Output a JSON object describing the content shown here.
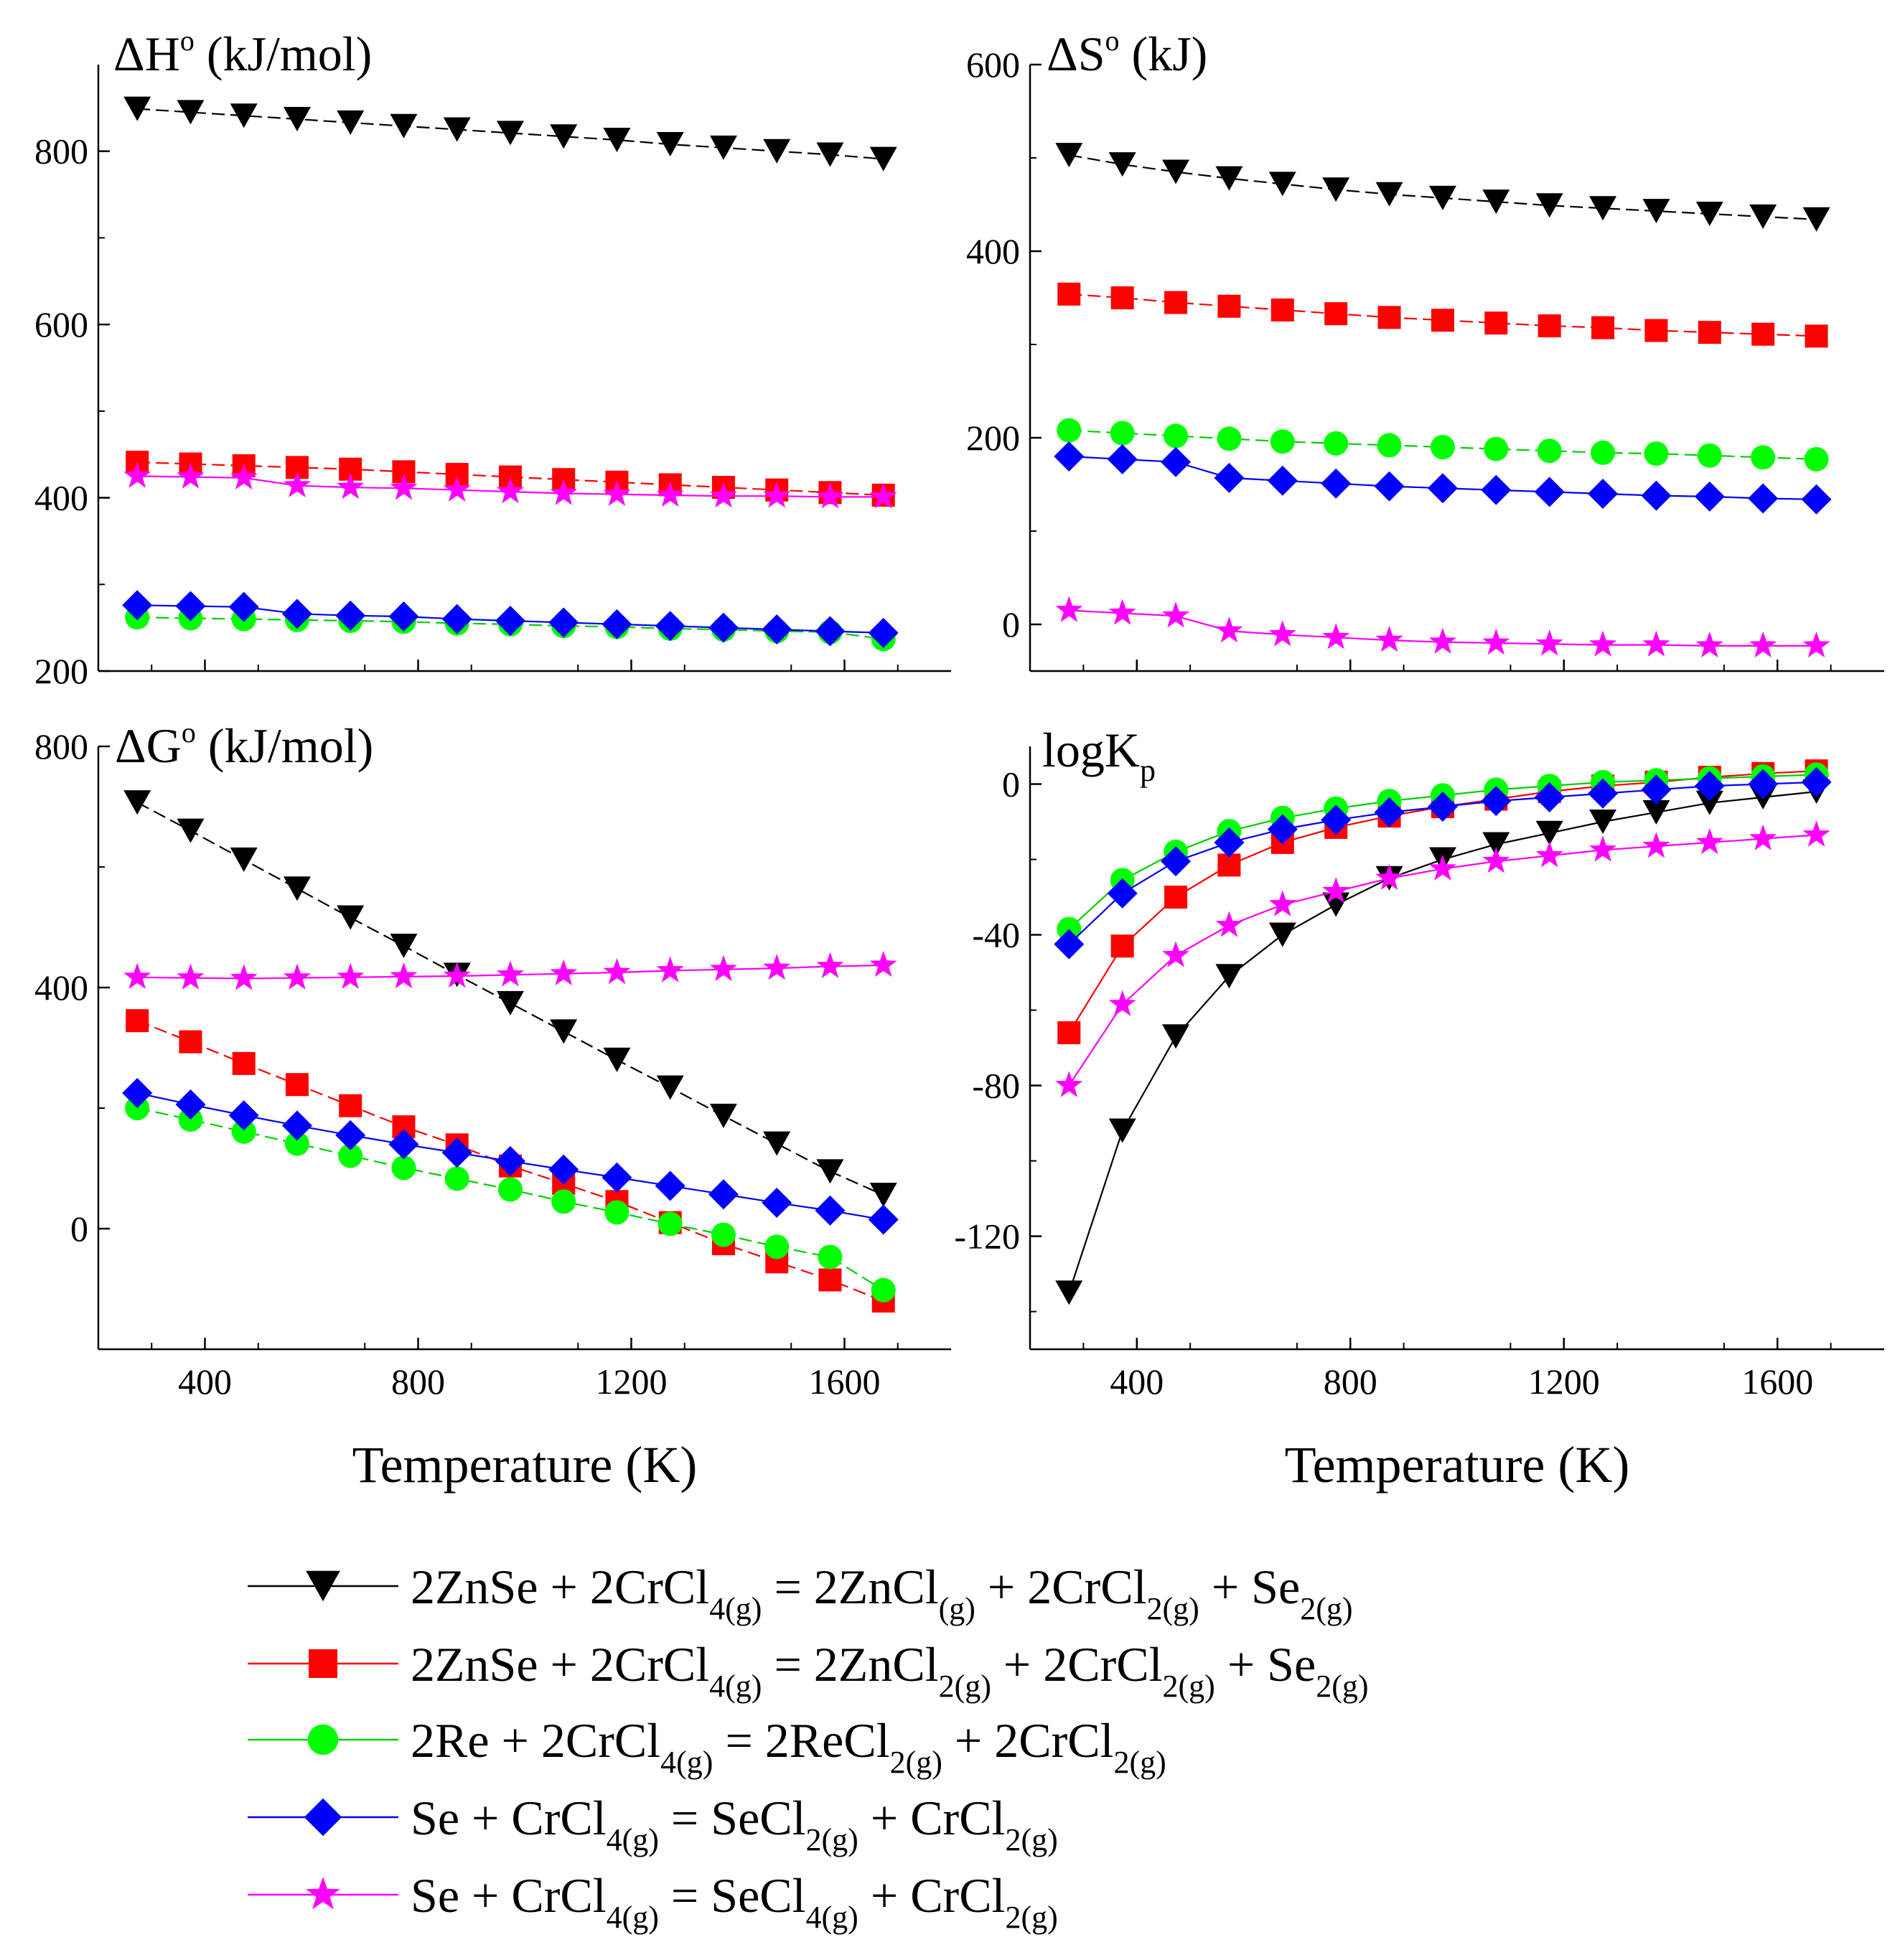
{
  "chart_data": [
    {
      "type": "line",
      "title": "ΔH",
      "title_sup": "o",
      "title_rest": " (kJ/mol)",
      "xlabel": "",
      "xlim": [
        200,
        1800
      ],
      "ylim": [
        200,
        900
      ],
      "yticks": [
        200,
        400,
        600,
        800
      ],
      "yticks_minor": [
        300,
        500,
        700
      ],
      "xticks": [
        400,
        800,
        1200,
        1600
      ],
      "show_x_ticklabels": false,
      "x": [
        273,
        373,
        473,
        573,
        673,
        773,
        873,
        973,
        1073,
        1173,
        1273,
        1373,
        1473,
        1573,
        1673
      ],
      "series": [
        {
          "values": [
            849,
            845,
            841,
            837,
            833,
            829,
            825,
            821,
            817,
            813,
            808,
            804,
            800,
            796,
            791
          ]
        },
        {
          "values": [
            441,
            439,
            437,
            435,
            433,
            430,
            427,
            424,
            421,
            418,
            415,
            412,
            409,
            406,
            403
          ]
        },
        {
          "values": [
            262,
            261,
            260,
            259,
            258,
            257,
            255,
            254,
            252,
            251,
            249,
            248,
            246,
            245,
            237
          ]
        },
        {
          "values": [
            276,
            275,
            274,
            266,
            264,
            263,
            260,
            258,
            256,
            254,
            252,
            250,
            248,
            246,
            244
          ]
        },
        {
          "values": [
            425,
            424,
            423,
            414,
            412,
            411,
            409,
            407,
            405,
            404,
            403,
            402,
            402,
            401,
            401
          ]
        }
      ]
    },
    {
      "type": "line",
      "title": "ΔS",
      "title_sup": "o",
      "title_rest": " (kJ)",
      "xlabel": "",
      "xlim": [
        200,
        1800
      ],
      "ylim": [
        -50,
        600
      ],
      "yticks": [
        0,
        200,
        400,
        600
      ],
      "yticks_minor": [
        100,
        300,
        500
      ],
      "xticks": [
        400,
        800,
        1200,
        1600
      ],
      "show_x_ticklabels": false,
      "x": [
        273,
        373,
        473,
        573,
        673,
        773,
        873,
        973,
        1073,
        1173,
        1273,
        1373,
        1473,
        1573,
        1673
      ],
      "series": [
        {
          "values": [
            503,
            493,
            485,
            478,
            472,
            466,
            461,
            457,
            453,
            449,
            446,
            443,
            440,
            437,
            434
          ]
        },
        {
          "values": [
            354,
            350,
            345,
            341,
            337,
            333,
            329,
            326,
            323,
            320,
            318,
            315,
            313,
            311,
            309
          ]
        },
        {
          "values": [
            208,
            205,
            202,
            199,
            196,
            194,
            192,
            190,
            188,
            186,
            184,
            183,
            181,
            179,
            177
          ]
        },
        {
          "values": [
            180,
            177,
            174,
            157,
            154,
            151,
            148,
            146,
            144,
            142,
            140,
            138,
            137,
            135,
            134
          ]
        },
        {
          "values": [
            15,
            12,
            9,
            -7,
            -11,
            -14,
            -17,
            -19,
            -20,
            -21,
            -22,
            -22,
            -23,
            -23,
            -23
          ]
        }
      ]
    },
    {
      "type": "line",
      "title": "ΔG",
      "title_sup": "o",
      "title_rest": " (kJ/mol)",
      "xlabel": "Temperature (K)",
      "xlim": [
        200,
        1800
      ],
      "ylim": [
        -200,
        800
      ],
      "yticks": [
        0,
        400,
        800
      ],
      "yticks_minor": [
        -200,
        200,
        600
      ],
      "xticks": [
        400,
        800,
        1200,
        1600
      ],
      "show_x_ticklabels": true,
      "x": [
        273,
        373,
        473,
        573,
        673,
        773,
        873,
        973,
        1073,
        1173,
        1273,
        1373,
        1473,
        1573,
        1673
      ],
      "series": [
        {
          "values": [
            707,
            660,
            612,
            564,
            516,
            469,
            421,
            374,
            327,
            280,
            234,
            187,
            141,
            95,
            56
          ]
        },
        {
          "values": [
            345,
            310,
            274,
            239,
            204,
            169,
            139,
            104,
            75,
            45,
            10,
            -25,
            -55,
            -85,
            -120
          ]
        },
        {
          "values": [
            200,
            181,
            161,
            141,
            121,
            101,
            83,
            65,
            45,
            27,
            8,
            -10,
            -30,
            -47,
            -102
          ]
        },
        {
          "values": [
            225,
            206,
            188,
            171,
            155,
            140,
            126,
            112,
            98,
            85,
            71,
            57,
            43,
            30,
            15
          ]
        },
        {
          "values": [
            417,
            416,
            415,
            416,
            417,
            418,
            419,
            421,
            423,
            425,
            428,
            430,
            432,
            435,
            437
          ]
        }
      ]
    },
    {
      "type": "line",
      "title": "logK",
      "title_sub": "p",
      "xlabel": "Temperature (K)",
      "xlim": [
        200,
        1800
      ],
      "ylim": [
        -150,
        10
      ],
      "yticks": [
        -120,
        -80,
        -40,
        0
      ],
      "yticks_minor": [
        -140,
        -100,
        -60,
        -20
      ],
      "xticks": [
        400,
        800,
        1200,
        1600
      ],
      "show_x_ticklabels": true,
      "x": [
        273,
        373,
        473,
        573,
        673,
        773,
        873,
        973,
        1073,
        1173,
        1273,
        1373,
        1473,
        1573,
        1673
      ],
      "series": [
        {
          "values": [
            -135,
            -92,
            -67,
            -51,
            -40,
            -32,
            -25,
            -20,
            -16,
            -13,
            -10,
            -7.5,
            -5,
            -3.5,
            -2
          ]
        },
        {
          "values": [
            -66,
            -43,
            -30,
            -21.5,
            -15.5,
            -11.5,
            -8.5,
            -6,
            -4,
            -2,
            -0.5,
            0.5,
            1.8,
            2.8,
            3.5
          ]
        },
        {
          "values": [
            -38.5,
            -25.5,
            -18,
            -12.5,
            -9,
            -6.5,
            -4.5,
            -3,
            -1.5,
            -0.5,
            0.5,
            1,
            1.5,
            2,
            2.5
          ]
        },
        {
          "values": [
            -42.5,
            -29,
            -20.5,
            -15.5,
            -12,
            -9.5,
            -7.5,
            -6,
            -4.5,
            -3.5,
            -2.5,
            -1.5,
            -0.5,
            0,
            0.5
          ]
        },
        {
          "values": [
            -80,
            -58.5,
            -45.5,
            -37.5,
            -32,
            -28.5,
            -25,
            -22.5,
            -20.5,
            -19,
            -17.5,
            -16.5,
            -15.5,
            -14.5,
            -13.5
          ]
        }
      ]
    }
  ],
  "legend": [
    {
      "marker": "triangle-down",
      "color": "#000000",
      "parts": [
        [
          "2ZnSe + 2CrCl",
          ""
        ],
        [
          "4(g)",
          "sub"
        ],
        [
          " = 2ZnCl",
          ""
        ],
        [
          "(g)",
          "sub"
        ],
        [
          " + 2CrCl",
          ""
        ],
        [
          "2(g)",
          "sub"
        ],
        [
          " + Se",
          ""
        ],
        [
          "2(g)",
          "sub"
        ]
      ]
    },
    {
      "marker": "square",
      "color": "#ff0000",
      "parts": [
        [
          "2ZnSe + 2CrCl",
          ""
        ],
        [
          "4(g)",
          "sub"
        ],
        [
          " = 2ZnCl",
          ""
        ],
        [
          "2(g)",
          "sub"
        ],
        [
          " + 2CrCl",
          ""
        ],
        [
          "2(g)",
          "sub"
        ],
        [
          " + Se",
          ""
        ],
        [
          "2(g)",
          "sub"
        ]
      ]
    },
    {
      "marker": "circle",
      "color": "#00ff00",
      "parts": [
        [
          "2Re + 2CrCl",
          ""
        ],
        [
          "4(g)",
          "sub"
        ],
        [
          " = 2ReCl",
          ""
        ],
        [
          "2(g)",
          "sub"
        ],
        [
          " + 2CrCl",
          ""
        ],
        [
          "2(g)",
          "sub"
        ]
      ]
    },
    {
      "marker": "diamond",
      "color": "#0000ff",
      "parts": [
        [
          "Se + CrCl",
          ""
        ],
        [
          "4(g)",
          "sub"
        ],
        [
          " = SeCl",
          ""
        ],
        [
          "2(g)",
          "sub"
        ],
        [
          " + CrCl",
          ""
        ],
        [
          "2(g)",
          "sub"
        ]
      ]
    },
    {
      "marker": "star",
      "color": "#ff00ff",
      "parts": [
        [
          "Se + CrCl",
          ""
        ],
        [
          "4(g)",
          "sub"
        ],
        [
          " = SeCl",
          ""
        ],
        [
          "4(g)",
          "sub"
        ],
        [
          " + CrCl",
          ""
        ],
        [
          "2(g)",
          "sub"
        ]
      ]
    }
  ]
}
